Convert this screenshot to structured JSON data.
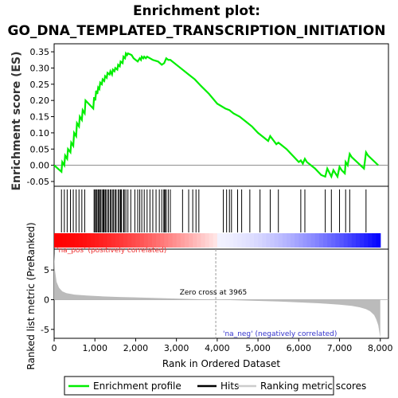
{
  "colors": {
    "profile": "#00ee00",
    "hits": "#000000",
    "ranking": "#bbbbbb",
    "pos_label": "#ee3333",
    "neg_label": "#3333cc",
    "heat_pos": "#ff0000",
    "heat_neg": "#0000ff"
  },
  "chart_data": {
    "type": "line",
    "title": "Enrichment plot:",
    "subtitle": "GO_DNA_TEMPLATED_TRANSCRIPTION_INITIATION",
    "xlabel": "Rank in Ordered Dataset",
    "ylabel_top": "Enrichment score (ES)",
    "ylabel_bottom": "Ranked list metric (PreRanked)",
    "xlim": [
      0,
      8200
    ],
    "es_ylim": [
      -0.05,
      0.36
    ],
    "es_yticks": [
      -0.05,
      0.0,
      0.05,
      0.1,
      0.15,
      0.2,
      0.25,
      0.3,
      0.35
    ],
    "metric_ylim": [
      -6.5,
      8.5
    ],
    "metric_yticks": [
      -5,
      0,
      5
    ],
    "xticks": [
      0,
      1000,
      2000,
      3000,
      4000,
      5000,
      6000,
      7000,
      8000
    ],
    "xtick_labels": [
      "0",
      "1,000",
      "2,000",
      "3,000",
      "4,000",
      "5,000",
      "6,000",
      "7,000",
      "8,000"
    ],
    "es_ytick_labels": [
      "-0.05",
      "0.00",
      "0.05",
      "0.10",
      "0.15",
      "0.20",
      "0.25",
      "0.30",
      "0.35"
    ],
    "metric_ytick_labels": [
      "-5",
      "0",
      "5"
    ],
    "zero_cross": 3965,
    "zero_cross_label": "Zero cross at 3965",
    "pos_label": "'na_pos' (positively correlated)",
    "neg_label": "'na_neg' (negatively correlated)",
    "n_genes": 8000,
    "series": [
      {
        "name": "Enrichment profile",
        "x": [
          0,
          180,
          200,
          250,
          270,
          320,
          340,
          400,
          420,
          470,
          490,
          540,
          560,
          610,
          630,
          680,
          700,
          750,
          770,
          960,
          980,
          1010,
          1030,
          1060,
          1080,
          1110,
          1130,
          1170,
          1190,
          1230,
          1250,
          1290,
          1310,
          1360,
          1380,
          1420,
          1440,
          1480,
          1500,
          1550,
          1570,
          1610,
          1630,
          1680,
          1700,
          1740,
          1760,
          1790,
          1810,
          1900,
          1950,
          2050,
          2100,
          2130,
          2150,
          2190,
          2210,
          2250,
          2280,
          2350,
          2420,
          2550,
          2640,
          2700,
          2750,
          2800,
          2850,
          3100,
          3300,
          3450,
          3600,
          3800,
          4000,
          4200,
          4300,
          4400,
          4550,
          4700,
          4850,
          5000,
          5150,
          5250,
          5300,
          5450,
          5500,
          5550,
          5700,
          5850,
          6000,
          6050,
          6100,
          6150,
          6200,
          6400,
          6550,
          6650,
          6700,
          6800,
          6850,
          6950,
          7000,
          7050,
          7130,
          7150,
          7200,
          7250,
          7300,
          7600,
          7650,
          7700,
          7950
        ],
        "y": [
          0.0,
          -0.02,
          0.01,
          0.0,
          0.03,
          0.02,
          0.05,
          0.04,
          0.07,
          0.06,
          0.1,
          0.09,
          0.13,
          0.12,
          0.15,
          0.14,
          0.17,
          0.16,
          0.2,
          0.175,
          0.21,
          0.2,
          0.23,
          0.22,
          0.24,
          0.235,
          0.255,
          0.25,
          0.265,
          0.26,
          0.275,
          0.27,
          0.285,
          0.28,
          0.29,
          0.28,
          0.295,
          0.29,
          0.3,
          0.295,
          0.31,
          0.305,
          0.32,
          0.315,
          0.335,
          0.33,
          0.345,
          0.34,
          0.345,
          0.34,
          0.33,
          0.32,
          0.33,
          0.325,
          0.335,
          0.33,
          0.335,
          0.33,
          0.335,
          0.33,
          0.325,
          0.32,
          0.31,
          0.315,
          0.33,
          0.325,
          0.325,
          0.3,
          0.28,
          0.265,
          0.245,
          0.22,
          0.19,
          0.175,
          0.17,
          0.16,
          0.15,
          0.135,
          0.12,
          0.1,
          0.085,
          0.075,
          0.09,
          0.065,
          0.07,
          0.065,
          0.05,
          0.03,
          0.01,
          0.015,
          0.005,
          0.02,
          0.01,
          -0.01,
          -0.03,
          -0.035,
          -0.01,
          -0.035,
          -0.015,
          -0.035,
          -0.005,
          -0.015,
          -0.025,
          0.01,
          0.0,
          0.035,
          0.025,
          -0.01,
          0.04,
          0.03,
          0.0
        ]
      },
      {
        "name": "Hits",
        "x": [
          180,
          250,
          320,
          400,
          470,
          540,
          610,
          680,
          750,
          980,
          1030,
          1080,
          1130,
          1190,
          1250,
          1310,
          1380,
          1440,
          1500,
          1570,
          1630,
          1700,
          1760,
          1810,
          1880,
          1980,
          2100,
          2150,
          2210,
          2280,
          2350,
          2420,
          2500,
          2580,
          2640,
          2690,
          2750,
          2800,
          2850,
          3150,
          3300,
          3400,
          3480,
          3550,
          4150,
          4230,
          4300,
          4350,
          4500,
          4600,
          4800,
          5050,
          5300,
          5500,
          6050,
          6150,
          6650,
          6800,
          7000,
          7150,
          7250,
          7650,
          1000,
          1050,
          1100,
          1150,
          1200,
          1220,
          1270,
          1340,
          1400,
          1460,
          1520,
          1600,
          1650,
          1720,
          2050,
          2700,
          2720
        ],
        "style": "vertical ticks"
      },
      {
        "name": "Ranking metric scores",
        "x": [
          0,
          20,
          60,
          120,
          200,
          300,
          500,
          800,
          1200,
          1600,
          2000,
          2500,
          3000,
          3500,
          3965,
          4500,
          5000,
          5500,
          6000,
          6500,
          7000,
          7300,
          7500,
          7650,
          7750,
          7850,
          7900,
          7950,
          7980,
          8000
        ],
        "y": [
          7.8,
          5.0,
          3.0,
          2.0,
          1.4,
          1.1,
          0.85,
          0.7,
          0.55,
          0.45,
          0.38,
          0.28,
          0.18,
          0.08,
          0.0,
          -0.1,
          -0.2,
          -0.3,
          -0.45,
          -0.6,
          -0.85,
          -1.05,
          -1.3,
          -1.6,
          -1.95,
          -2.6,
          -3.3,
          -4.3,
          -5.6,
          -6.4
        ]
      }
    ],
    "legend": {
      "placement": "bottom",
      "entries": [
        "Enrichment profile",
        "Hits",
        "Ranking metric scores"
      ]
    }
  }
}
